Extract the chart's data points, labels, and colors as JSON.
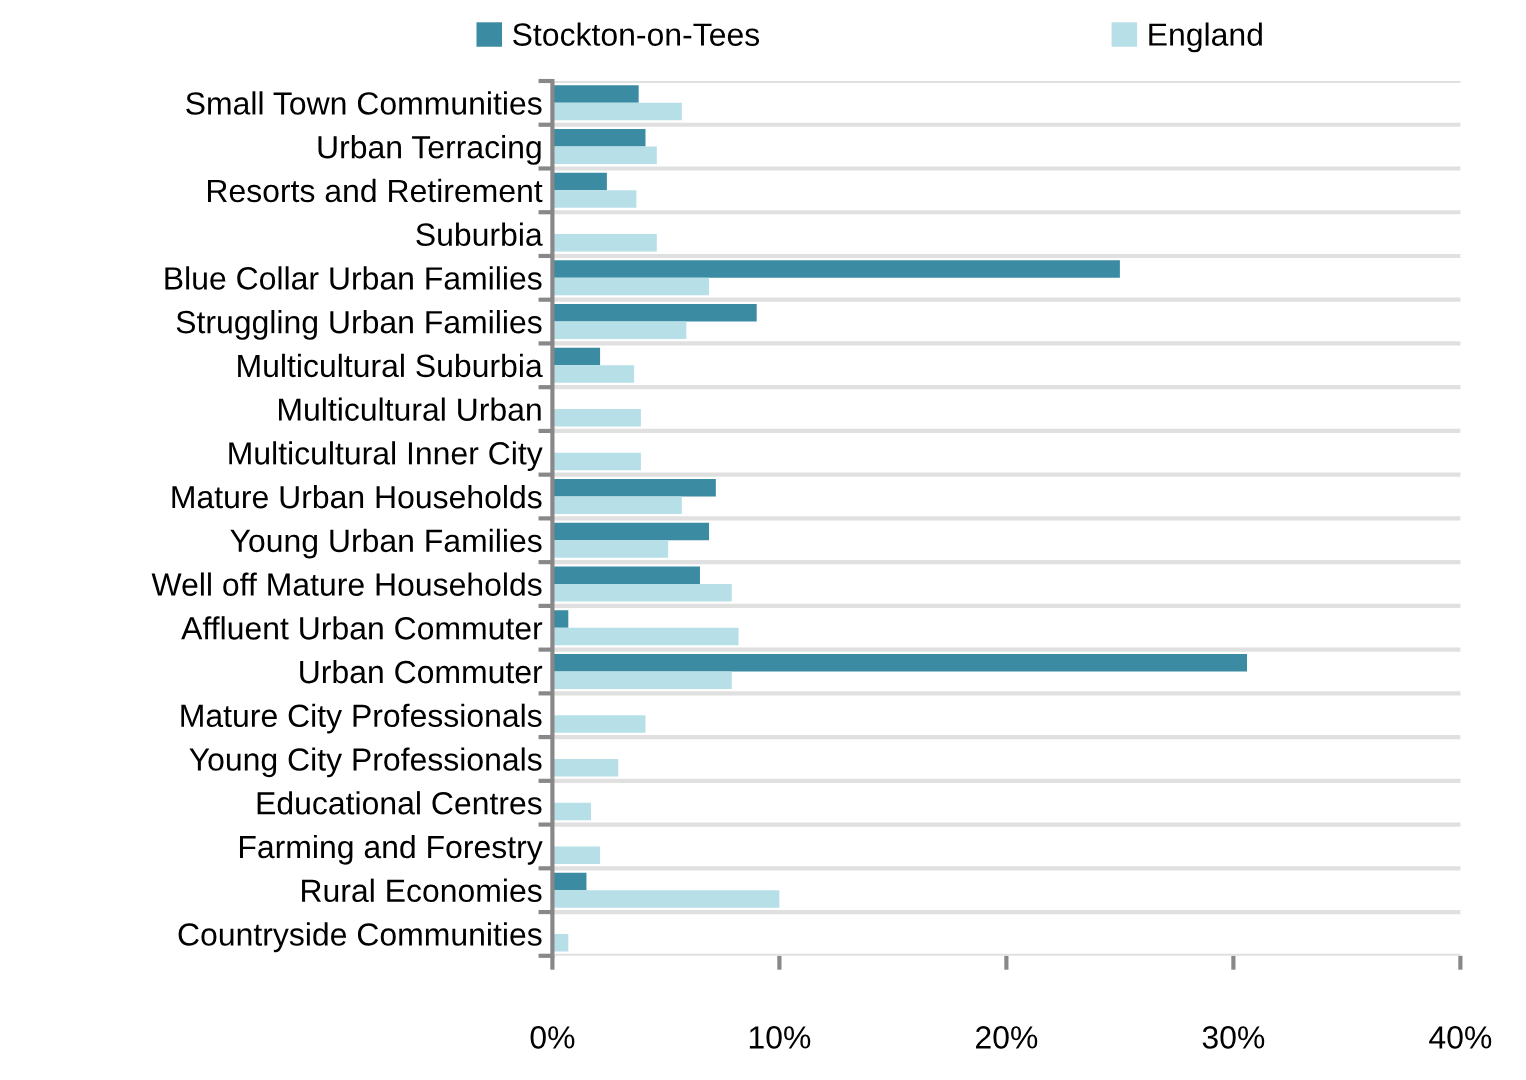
{
  "chart_data": {
    "type": "bar",
    "orientation": "horizontal",
    "categories": [
      "Small Town Communities",
      "Urban Terracing",
      "Resorts and Retirement",
      "Suburbia",
      "Blue Collar Urban Families",
      "Struggling Urban Families",
      "Multicultural Suburbia",
      "Multicultural Urban",
      "Multicultural Inner City",
      "Mature Urban Households",
      "Young Urban Families",
      "Well off Mature Households",
      "Affluent Urban Commuter",
      "Urban Commuter",
      "Mature City Professionals",
      "Young City Professionals",
      "Educational Centres",
      "Farming and Forestry",
      "Rural Economies",
      "Countryside Communities"
    ],
    "series": [
      {
        "name": "Stockton-on-Tees",
        "color": "#3b8ba3",
        "values": [
          3.8,
          4.1,
          2.4,
          null,
          25.0,
          9.0,
          2.1,
          null,
          null,
          7.2,
          6.9,
          6.5,
          0.7,
          30.6,
          null,
          null,
          null,
          null,
          1.5,
          null
        ]
      },
      {
        "name": "England",
        "color": "#b7dfe8",
        "values": [
          5.7,
          4.6,
          3.7,
          4.6,
          6.9,
          5.9,
          3.6,
          3.9,
          3.9,
          5.7,
          5.1,
          7.9,
          8.2,
          7.9,
          4.1,
          2.9,
          1.7,
          2.1,
          10.0,
          0.7
        ]
      }
    ],
    "xlim": [
      0,
      40
    ],
    "xticks": [
      {
        "value": 0,
        "label": "0%"
      },
      {
        "value": 10,
        "label": "10%"
      },
      {
        "value": 20,
        "label": "20%"
      },
      {
        "value": 30,
        "label": "30%"
      },
      {
        "value": 40,
        "label": "40%"
      }
    ],
    "grid": "y",
    "legend": "top"
  }
}
